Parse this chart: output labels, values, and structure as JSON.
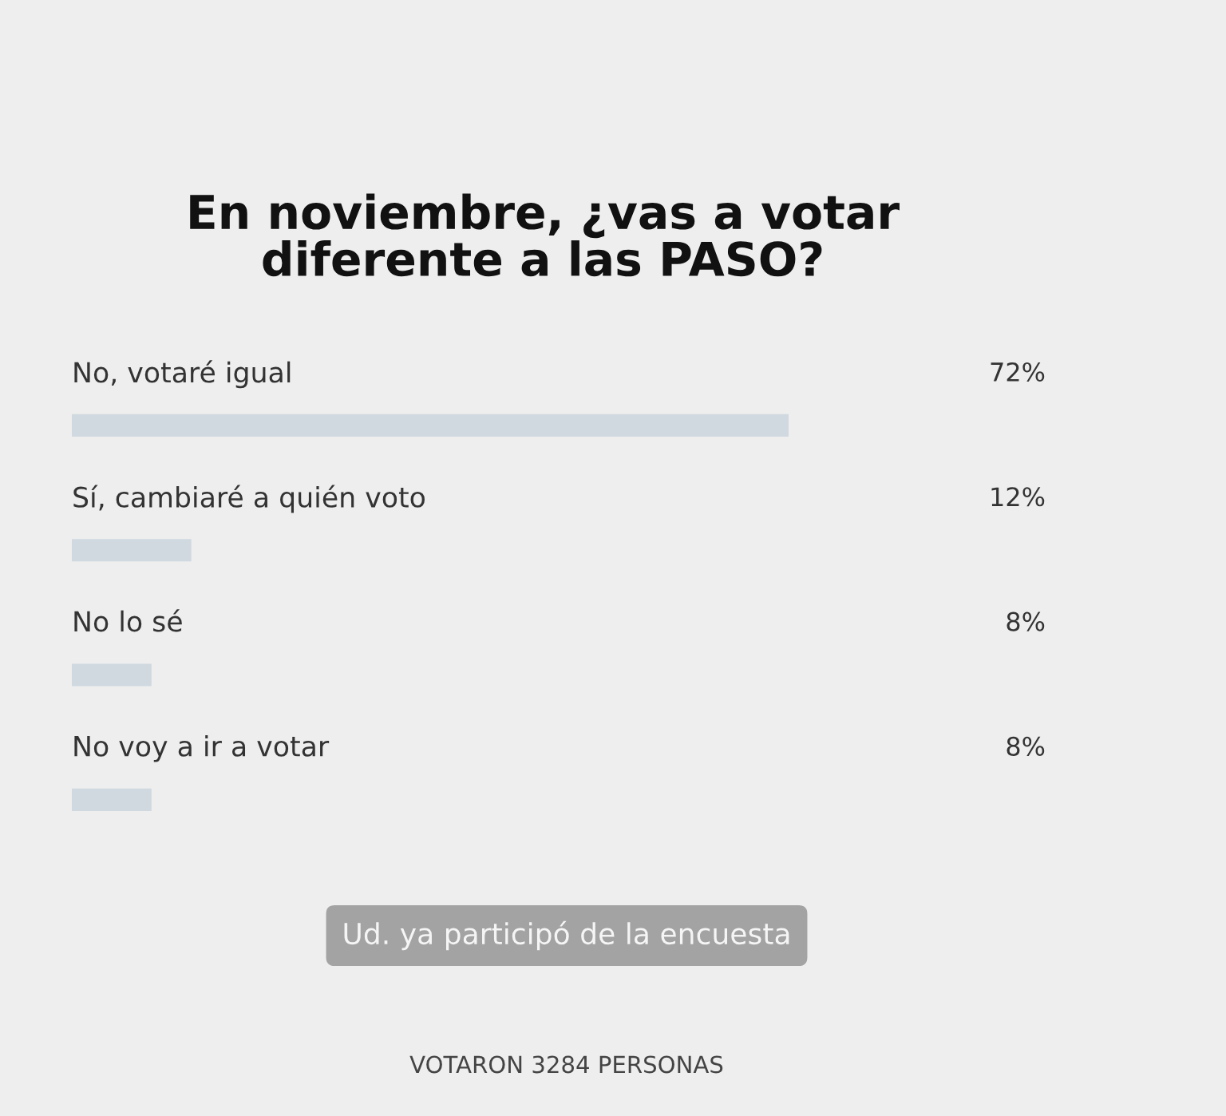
{
  "chart_data": {
    "type": "bar",
    "orientation": "horizontal",
    "title": "En noviembre, ¿vas a votar\ndiferente a las PASO?",
    "categories": [
      "No, votaré igual",
      "Sí, cambiaré a quién voto",
      "No lo sé",
      "No voy a ir a votar"
    ],
    "values": [
      72,
      12,
      8,
      8
    ],
    "value_labels": [
      "72%",
      "12%",
      "8%",
      "8%"
    ],
    "color": "#d0d9e0",
    "tick_labels": false,
    "legend": false,
    "annotations": [
      "Ud. ya participó de la encuesta",
      "VOTARON 3284 PERSONAS"
    ]
  }
}
